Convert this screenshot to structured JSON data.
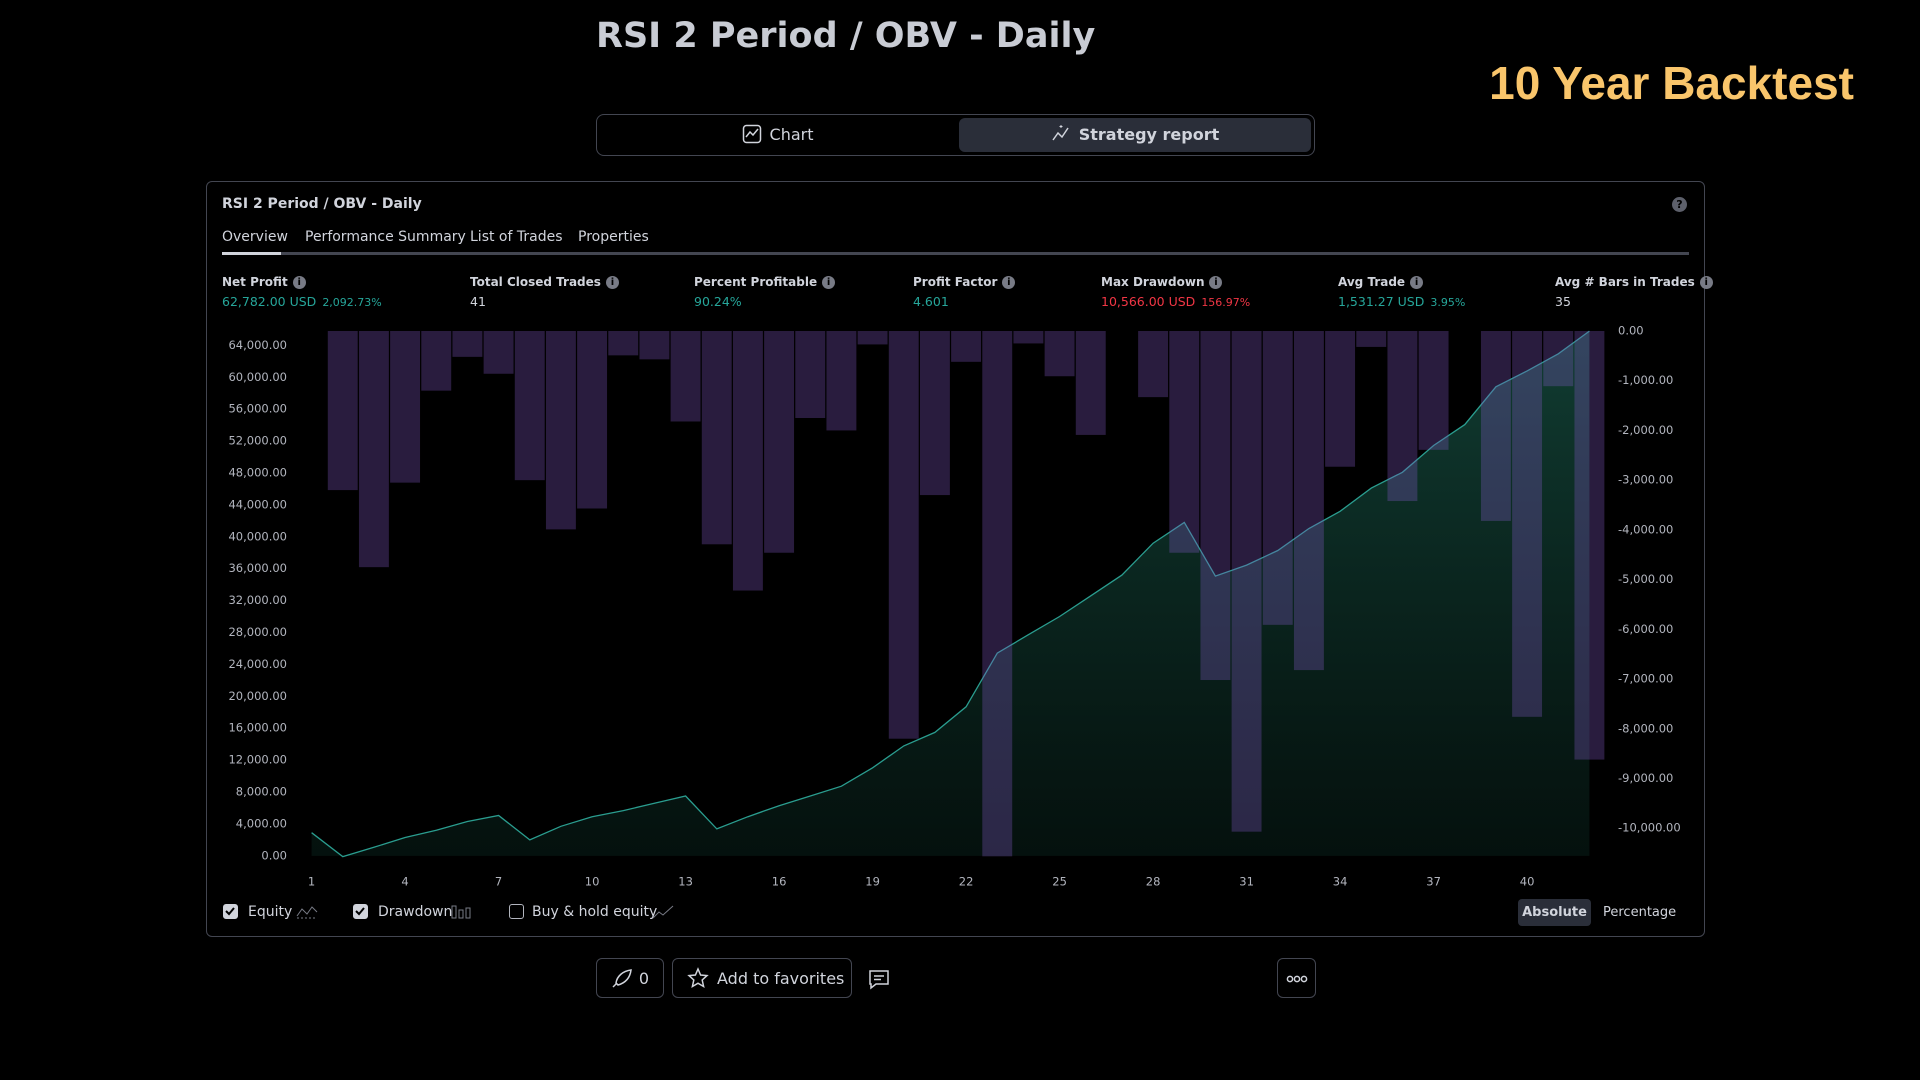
{
  "header": {
    "title": "RSI 2 Period / OBV - Daily",
    "badge": "10 Year Backtest"
  },
  "view_tabs": [
    "Chart",
    "Strategy report"
  ],
  "report": {
    "title": "RSI 2 Period / OBV - Daily",
    "tabs": [
      "Overview",
      "Performance Summary",
      "List of Trades",
      "Properties"
    ],
    "stats": [
      {
        "label": "Net Profit",
        "value": "62,782.00 USD",
        "extra": "2,092.73%"
      },
      {
        "label": "Total Closed Trades",
        "value": "41"
      },
      {
        "label": "Percent Profitable",
        "value": "90.24%"
      },
      {
        "label": "Profit Factor",
        "value": "4.601"
      },
      {
        "label": "Max Drawdown",
        "value": "10,566.00 USD",
        "extra": "156.97%"
      },
      {
        "label": "Avg Trade",
        "value": "1,531.27 USD",
        "extra": "3.95%"
      },
      {
        "label": "Avg # Bars in Trades",
        "value": "35"
      }
    ],
    "buy_hold": {
      "label": "Buy & hold equity",
      "checked": false
    },
    "modes": [
      "Absolute",
      "Percentage"
    ]
  },
  "actions": {
    "boosts": "0",
    "favorites": "Add to favorites"
  },
  "chart_data": {
    "type": "combo",
    "x": [
      1,
      2,
      3,
      4,
      5,
      6,
      7,
      8,
      9,
      10,
      11,
      12,
      13,
      14,
      15,
      16,
      17,
      18,
      19,
      20,
      21,
      22,
      23,
      24,
      25,
      26,
      27,
      28,
      29,
      30,
      31,
      32,
      33,
      34,
      35,
      36,
      37,
      38,
      39,
      40,
      41,
      42
    ],
    "series": [
      {
        "name": "Equity",
        "type": "area",
        "axis": "y",
        "color": "#2a9d8f",
        "checked": true,
        "values": [
          2900,
          -100,
          1070,
          2300,
          3200,
          4300,
          5050,
          2000,
          3700,
          4900,
          5670,
          6580,
          7500,
          3370,
          4900,
          6280,
          7500,
          8730,
          11030,
          13780,
          15470,
          18680,
          25420,
          27720,
          30000,
          32600,
          35200,
          39200,
          41800,
          35070,
          36450,
          38280,
          41040,
          43190,
          46100,
          48080,
          51450,
          54060,
          58800,
          60800,
          62940,
          65782
        ]
      },
      {
        "name": "Drawdown",
        "type": "bar",
        "axis": "y2",
        "color": "#7e57c2",
        "checked": true,
        "values": [
          0,
          -3200,
          -4750,
          -3050,
          -1200,
          -520,
          -860,
          -3000,
          -3990,
          -3570,
          -490,
          -570,
          -1820,
          -4290,
          -5220,
          -4460,
          -1750,
          -2000,
          -270,
          -8200,
          -3300,
          -620,
          -10566,
          -250,
          -910,
          -2090,
          0,
          -1330,
          -4460,
          -7020,
          -10070,
          -5910,
          -6820,
          -2730,
          -320,
          -3420,
          -2390,
          0,
          -3820,
          -7760,
          -1110,
          -8620
        ]
      }
    ],
    "xlim": [
      0.5,
      42.5
    ],
    "xticks": [
      1,
      4,
      7,
      10,
      13,
      16,
      19,
      22,
      25,
      28,
      31,
      34,
      37,
      40
    ],
    "ylim": [
      -900,
      65800
    ],
    "yticks": [
      {
        "value": 0,
        "label": "0.00"
      },
      {
        "value": 4000,
        "label": "4,000.00"
      },
      {
        "value": 8000,
        "label": "8,000.00"
      },
      {
        "value": 12000,
        "label": "12,000.00"
      },
      {
        "value": 16000,
        "label": "16,000.00"
      },
      {
        "value": 20000,
        "label": "20,000.00"
      },
      {
        "value": 24000,
        "label": "24,000.00"
      },
      {
        "value": 28000,
        "label": "28,000.00"
      },
      {
        "value": 32000,
        "label": "32,000.00"
      },
      {
        "value": 36000,
        "label": "36,000.00"
      },
      {
        "value": 40000,
        "label": "40,000.00"
      },
      {
        "value": 44000,
        "label": "44,000.00"
      },
      {
        "value": 48000,
        "label": "48,000.00"
      },
      {
        "value": 52000,
        "label": "52,000.00"
      },
      {
        "value": 56000,
        "label": "56,000.00"
      },
      {
        "value": 60000,
        "label": "60,000.00"
      },
      {
        "value": 64000,
        "label": "64,000.00"
      }
    ],
    "y2lim": [
      -10700,
      0
    ],
    "y2ticks": [
      {
        "value": 0,
        "label": "0.00"
      },
      {
        "value": -1000,
        "label": "-1,000.00"
      },
      {
        "value": -2000,
        "label": "-2,000.00"
      },
      {
        "value": -3000,
        "label": "-3,000.00"
      },
      {
        "value": -4000,
        "label": "-4,000.00"
      },
      {
        "value": -5000,
        "label": "-5,000.00"
      },
      {
        "value": -6000,
        "label": "-6,000.00"
      },
      {
        "value": -7000,
        "label": "-7,000.00"
      },
      {
        "value": -8000,
        "label": "-8,000.00"
      },
      {
        "value": -9000,
        "label": "-9,000.00"
      },
      {
        "value": -10000,
        "label": "-10,000.00"
      }
    ],
    "grid": false
  }
}
